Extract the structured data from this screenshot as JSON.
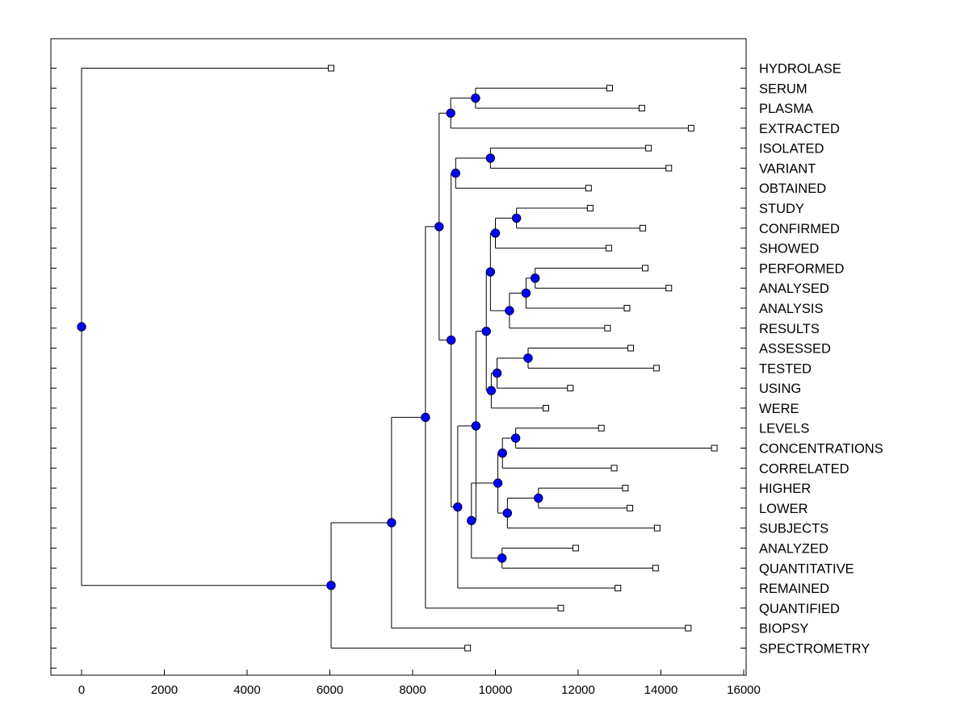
{
  "chart_data": {
    "type": "dendrogram",
    "orientation": "horizontal",
    "x_ticks": [
      0,
      2000,
      4000,
      6000,
      8000,
      10000,
      12000,
      14000,
      16000
    ],
    "xlim": [
      -750,
      16000
    ],
    "leaves": [
      {
        "label": "HYDROLASE",
        "value": 6030
      },
      {
        "label": "SERUM",
        "value": 12760
      },
      {
        "label": "PLASMA",
        "value": 13540
      },
      {
        "label": "EXTRACTED",
        "value": 14730
      },
      {
        "label": "ISOLATED",
        "value": 13700
      },
      {
        "label": "VARIANT",
        "value": 14190
      },
      {
        "label": "OBTAINED",
        "value": 12250
      },
      {
        "label": "STUDY",
        "value": 12290
      },
      {
        "label": "CONFIRMED",
        "value": 13560
      },
      {
        "label": "SHOWED",
        "value": 12740
      },
      {
        "label": "PERFORMED",
        "value": 13620
      },
      {
        "label": "ANALYSED",
        "value": 14190
      },
      {
        "label": "ANALYSIS",
        "value": 13180
      },
      {
        "label": "RESULTS",
        "value": 12710
      },
      {
        "label": "ASSESSED",
        "value": 13270
      },
      {
        "label": "TESTED",
        "value": 13890
      },
      {
        "label": "USING",
        "value": 11810
      },
      {
        "label": "WERE",
        "value": 11220
      },
      {
        "label": "LEVELS",
        "value": 12560
      },
      {
        "label": "CONCENTRATIONS",
        "value": 15290
      },
      {
        "label": "CORRELATED",
        "value": 12870
      },
      {
        "label": "HIGHER",
        "value": 13140
      },
      {
        "label": "LOWER",
        "value": 13250
      },
      {
        "label": "SUBJECTS",
        "value": 13910
      },
      {
        "label": "ANALYZED",
        "value": 11940
      },
      {
        "label": "QUANTITATIVE",
        "value": 13870
      },
      {
        "label": "REMAINED",
        "value": 12960
      },
      {
        "label": "QUANTIFIED",
        "value": 11580
      },
      {
        "label": "BIOPSY",
        "value": 14660
      },
      {
        "label": "SPECTROMETRY",
        "value": 9330
      }
    ],
    "merges": [
      {
        "id": "n1",
        "value": 9520,
        "children": [
          "SERUM",
          "PLASMA"
        ]
      },
      {
        "id": "n2",
        "value": 8920,
        "children": [
          "n1",
          "EXTRACTED"
        ]
      },
      {
        "id": "n3",
        "value": 9880,
        "children": [
          "ISOLATED",
          "VARIANT"
        ]
      },
      {
        "id": "n4",
        "value": 9040,
        "children": [
          "n3",
          "OBTAINED"
        ]
      },
      {
        "id": "n5",
        "value": 10510,
        "children": [
          "STUDY",
          "CONFIRMED"
        ]
      },
      {
        "id": "n6",
        "value": 10000,
        "children": [
          "n5",
          "SHOWED"
        ]
      },
      {
        "id": "n7",
        "value": 10960,
        "children": [
          "PERFORMED",
          "ANALYSED"
        ]
      },
      {
        "id": "n8",
        "value": 10740,
        "children": [
          "n7",
          "ANALYSIS"
        ]
      },
      {
        "id": "n9",
        "value": 10340,
        "children": [
          "n8",
          "RESULTS"
        ]
      },
      {
        "id": "n10",
        "value": 9880,
        "children": [
          "n6",
          "n9"
        ]
      },
      {
        "id": "n11",
        "value": 10790,
        "children": [
          "ASSESSED",
          "TESTED"
        ]
      },
      {
        "id": "n12",
        "value": 10040,
        "children": [
          "n11",
          "USING"
        ]
      },
      {
        "id": "n13",
        "value": 9900,
        "children": [
          "n12",
          "WERE"
        ]
      },
      {
        "id": "n14",
        "value": 9780,
        "children": [
          "n10",
          "n13"
        ]
      },
      {
        "id": "n15",
        "value": 10490,
        "children": [
          "LEVELS",
          "CONCENTRATIONS"
        ]
      },
      {
        "id": "n16",
        "value": 10170,
        "children": [
          "n15",
          "CORRELATED"
        ]
      },
      {
        "id": "n17",
        "value": 11040,
        "children": [
          "HIGHER",
          "LOWER"
        ]
      },
      {
        "id": "n18",
        "value": 10290,
        "children": [
          "n17",
          "SUBJECTS"
        ]
      },
      {
        "id": "n19",
        "value": 10060,
        "children": [
          "n16",
          "n18"
        ]
      },
      {
        "id": "n20",
        "value": 10160,
        "children": [
          "ANALYZED",
          "QUANTITATIVE"
        ]
      },
      {
        "id": "n21",
        "value": 9420,
        "children": [
          "n19",
          "n20"
        ]
      },
      {
        "id": "n22",
        "value": 9530,
        "children": [
          "n14",
          "n21"
        ]
      },
      {
        "id": "n23",
        "value": 9090,
        "children": [
          "n22",
          "REMAINED"
        ]
      },
      {
        "id": "n24",
        "value": 8930,
        "children": [
          "n4",
          "n23"
        ]
      },
      {
        "id": "n25",
        "value": 8640,
        "children": [
          "n2",
          "n24"
        ]
      },
      {
        "id": "n26",
        "value": 8310,
        "children": [
          "n25",
          "QUANTIFIED"
        ]
      },
      {
        "id": "n27",
        "value": 7490,
        "children": [
          "n26",
          "BIOPSY"
        ]
      },
      {
        "id": "n28",
        "value": 6030,
        "children": [
          "n27",
          "SPECTROMETRY"
        ]
      },
      {
        "id": "root",
        "value": 0,
        "children": [
          "HYDROLASE",
          "n28"
        ]
      }
    ],
    "colors": {
      "node_fill": "#0000ff",
      "node_stroke": "#000033",
      "leaf_fill": "#ffffff",
      "line": "#000000",
      "frame": "#000000"
    }
  }
}
